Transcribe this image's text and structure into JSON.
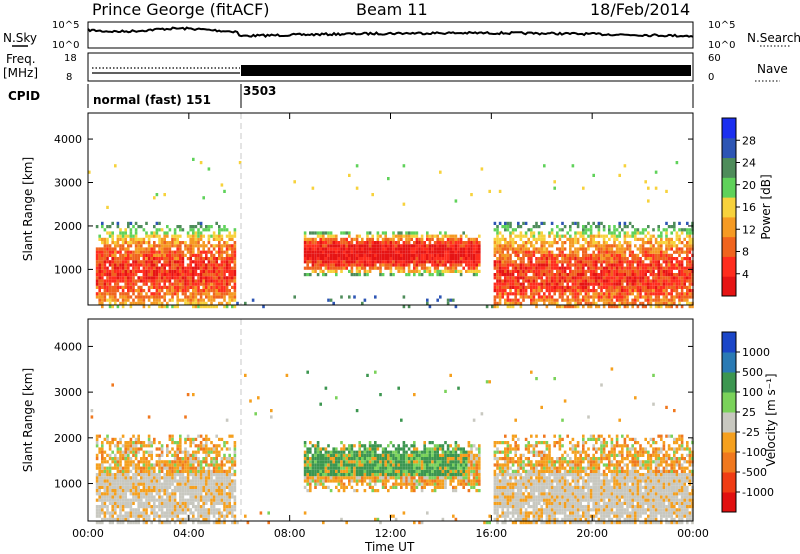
{
  "header": {
    "station": "Prince George (fitACF)",
    "beam": "Beam 11",
    "date": "18/Feb/2014"
  },
  "sky_panel": {
    "left_label": "N.Sky",
    "right_label": "N.Search",
    "left_ticks": [
      "10^5",
      "10^0"
    ],
    "right_ticks": [
      "10^5",
      "10^0"
    ]
  },
  "freq_panel": {
    "left_label_1": "Freq.",
    "left_label_2": "[MHz]",
    "right_label": "Nave",
    "left_ticks": [
      "18",
      "8"
    ],
    "right_ticks": [
      "60",
      "0"
    ]
  },
  "cpid_panel": {
    "label": "CPID",
    "modes": [
      "normal (fast) 151",
      "3503"
    ]
  },
  "colors": {
    "power_scale": [
      "#1b2ff0",
      "#2d55b4",
      "#4e8c5a",
      "#5fd25a",
      "#f7d23c",
      "#f59a23",
      "#f0641e",
      "#ff2d1e",
      "#e61414"
    ],
    "velocity_scale": [
      "#1b46c8",
      "#2a7ab4",
      "#3c9650",
      "#7ad25a",
      "#c8c8c0",
      "#f5a01e",
      "#f0781e",
      "#f03c14",
      "#e11010"
    ]
  },
  "chart_data": [
    {
      "type": "heatmap",
      "title": "",
      "xlabel": "",
      "ylabel": "Slant Range [km]",
      "xlim": [
        "00:00",
        "24:00"
      ],
      "ylim": [
        180,
        4600
      ],
      "y_ticks": [
        1000,
        2000,
        3000,
        4000
      ],
      "colorbar": {
        "label": "Power [dB]",
        "ticks": [
          "4",
          "8",
          "12",
          "16",
          "20",
          "24",
          "28"
        ],
        "range": [
          0,
          30
        ]
      },
      "echo_regions": [
        {
          "start_hour": 0.3,
          "end_hour": 5.8,
          "center_km": 1000,
          "top_km": 2300,
          "level": "strong"
        },
        {
          "start_hour": 8.5,
          "end_hour": 15.5,
          "center_km": 1400,
          "top_km": 2000,
          "level": "very strong"
        },
        {
          "start_hour": 16.0,
          "end_hour": 24.0,
          "center_km": 900,
          "top_km": 2300,
          "level": "strong"
        }
      ]
    },
    {
      "type": "heatmap",
      "title": "",
      "xlabel": "Time UT",
      "ylabel": "Slant Range [km]",
      "xlim": [
        "00:00",
        "24:00"
      ],
      "ylim": [
        180,
        4600
      ],
      "x_ticks": [
        "00:00",
        "04:00",
        "08:00",
        "12:00",
        "16:00",
        "20:00",
        "00:00"
      ],
      "y_ticks": [
        1000,
        2000,
        3000,
        4000
      ],
      "colorbar": {
        "label": "Velocity [m s⁻¹]",
        "ticks": [
          "1000",
          "500",
          "100",
          "25",
          "-25",
          "-100",
          "-500",
          "-1000"
        ]
      }
    }
  ]
}
